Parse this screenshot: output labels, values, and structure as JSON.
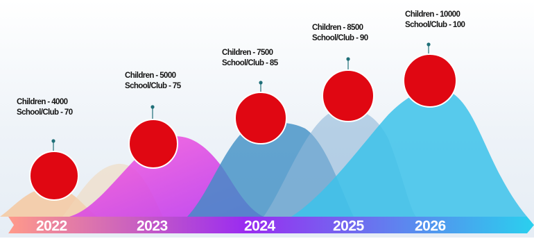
{
  "colors": {
    "circle": "#e00712",
    "pin": "#1f6f78",
    "wave_2022": "#f4c8a0",
    "wave_2023": "#f03ce6",
    "wave_2024": "#3f8ec4",
    "wave_2025": "#8fb8d8",
    "wave_2026": "#3cc2ea",
    "band_start": "#ff9a8a",
    "band_mid": "#9a2cf0",
    "band_end": "#2ad0ee"
  },
  "milestones": [
    {
      "year": "2022",
      "children": "Children - 4000",
      "schools": "School/Club - 70"
    },
    {
      "year": "2023",
      "children": "Children - 5000",
      "schools": "School/Club - 75"
    },
    {
      "year": "2024",
      "children": "Children - 7500",
      "schools": "School/Club - 85"
    },
    {
      "year": "2025",
      "children": "Children - 8500",
      "schools": "School/Club - 90"
    },
    {
      "year": "2026",
      "children": "Children - 10000",
      "schools": "School/Club - 100"
    }
  ]
}
